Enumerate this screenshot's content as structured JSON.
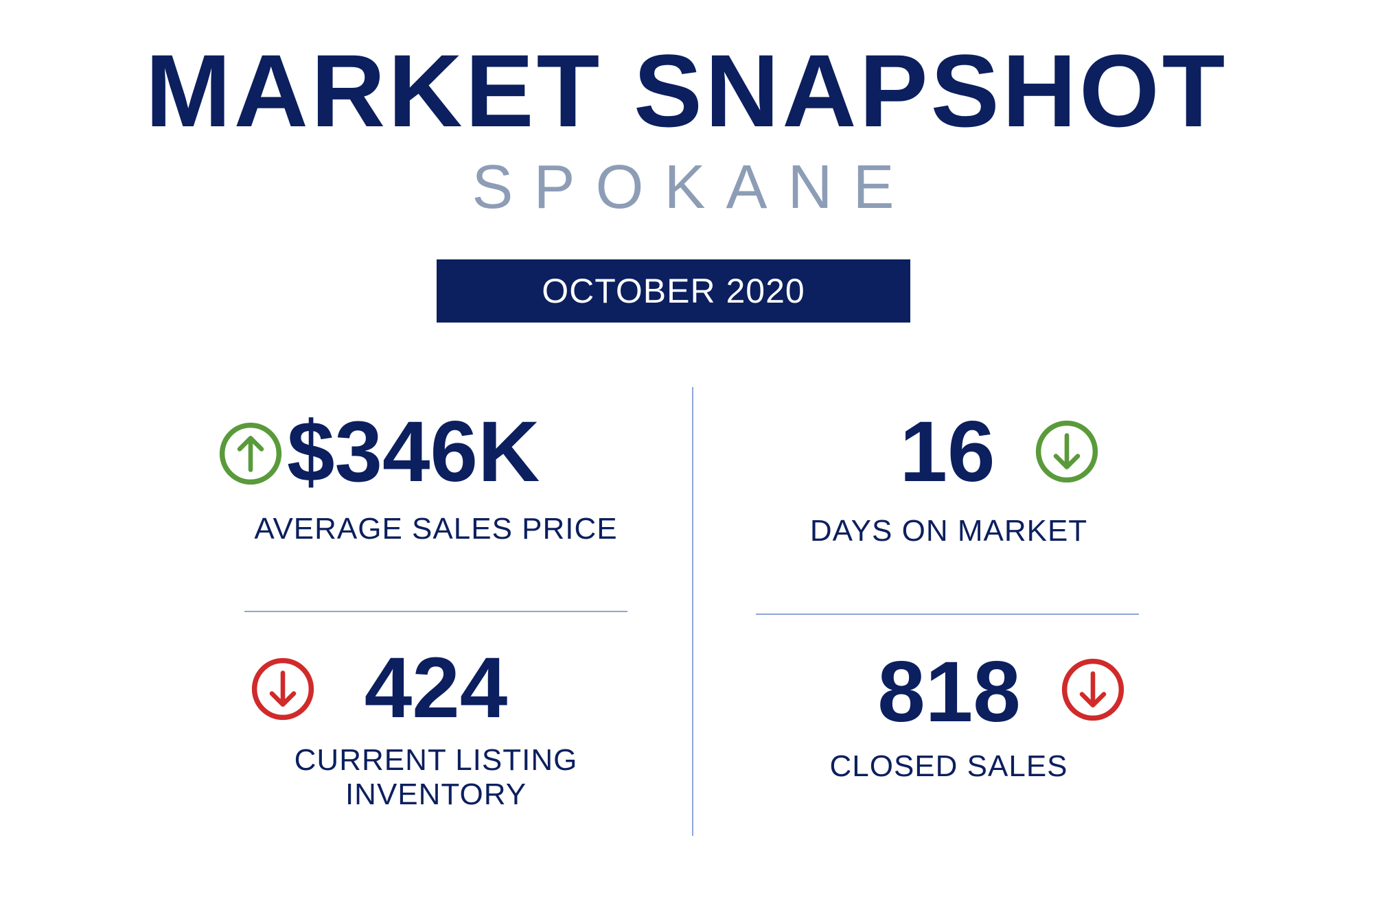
{
  "header": {
    "title": "MARKET SNAPSHOT",
    "subtitle": "SPOKANE",
    "period": "OCTOBER 2020"
  },
  "colors": {
    "navy": "#0c1f5e",
    "up_good": "#5a9a3a",
    "down_good": "#5a9a3a",
    "down_bad": "#d02a2a",
    "subtitle": "#8d9db6"
  },
  "metrics": [
    {
      "value": "$346K",
      "label": "AVERAGE SALES PRICE",
      "trend": "up",
      "icon": "arrow-up-circle-green"
    },
    {
      "value": "16",
      "label": "DAYS ON MARKET",
      "trend": "down",
      "icon": "arrow-down-circle-green"
    },
    {
      "value": "424",
      "label_line1": "CURRENT LISTING",
      "label_line2": "INVENTORY",
      "trend": "down",
      "icon": "arrow-down-circle-red"
    },
    {
      "value": "818",
      "label": "CLOSED SALES",
      "trend": "down",
      "icon": "arrow-down-circle-red"
    }
  ]
}
